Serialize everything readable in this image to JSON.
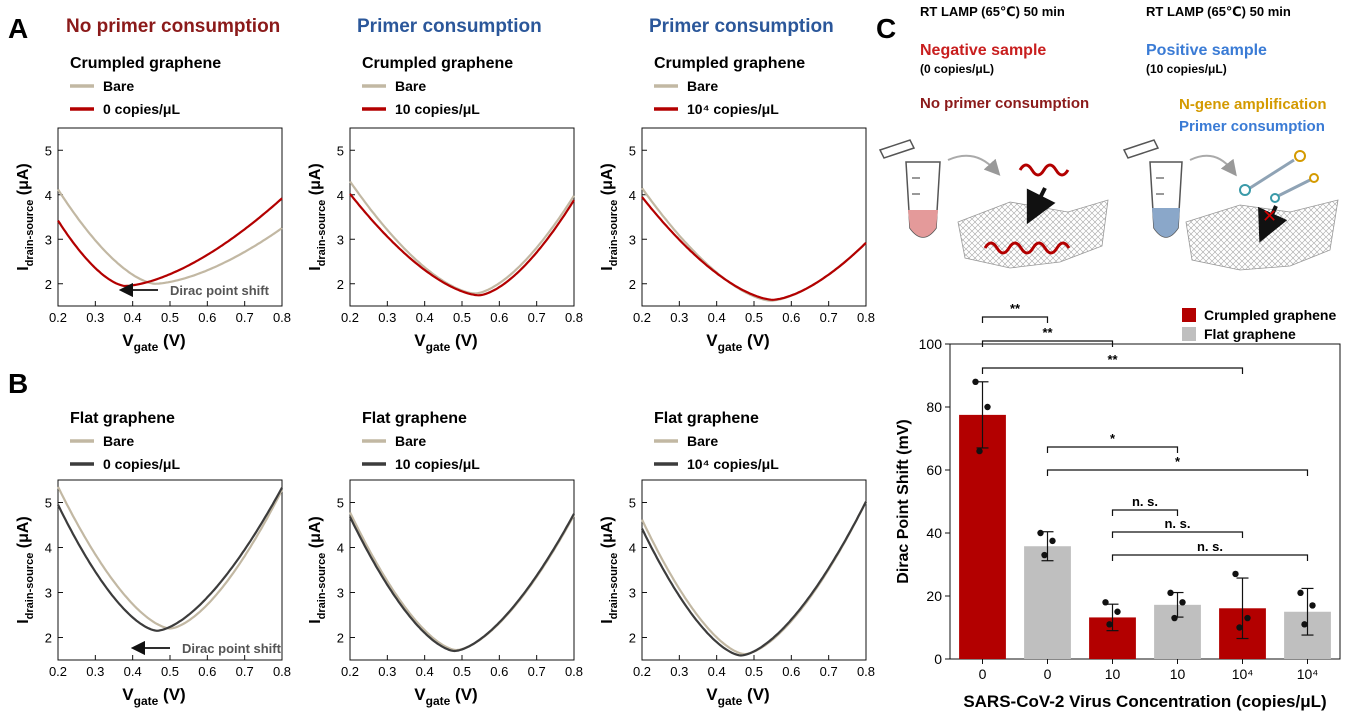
{
  "panels": {
    "A": {
      "label": "A"
    },
    "B": {
      "label": "B"
    },
    "C": {
      "label": "C"
    }
  },
  "column_headers": [
    {
      "text": "No primer consumption",
      "color": "#8b1a1a"
    },
    {
      "text": "Primer consumption",
      "color": "#2b579a"
    },
    {
      "text": "Primer consumption",
      "color": "#2b579a"
    }
  ],
  "colors": {
    "bare": "#c2b8a3",
    "crumpled": "#b30000",
    "flat": "#3c3c3c",
    "flat_bar": "#bfbfbf",
    "annotation": "#555555",
    "tube_negative": "#e49a9a",
    "tube_positive": "#8aa7c9",
    "ngene": "#d49a00",
    "primer": "#3a7bd5"
  },
  "iv_plots": [
    {
      "row": "A",
      "col": 0,
      "subtitle": "Crumpled graphene",
      "legend": [
        "Bare",
        "0 copies/μL"
      ],
      "sample_color": "crumpled",
      "bare": {
        "min_x": 0.46,
        "min_y": 2.0,
        "left_y": 4.12,
        "right_y": 3.25
      },
      "sample": {
        "min_x": 0.38,
        "min_y": 1.95,
        "left_y": 3.42,
        "right_y": 3.92
      },
      "annotation": "Dirac point shift",
      "xlabel": "V",
      "xlabel_sub": "gate",
      "xlabel_unit": "(V)",
      "ylabel": "I",
      "ylabel_sub": "drain-source",
      "ylabel_unit": "(μA)"
    },
    {
      "row": "A",
      "col": 1,
      "subtitle": "Crumpled graphene",
      "legend": [
        "Bare",
        "10 copies/μL"
      ],
      "sample_color": "crumpled",
      "bare": {
        "min_x": 0.535,
        "min_y": 1.78,
        "left_y": 4.3,
        "right_y": 3.98
      },
      "sample": {
        "min_x": 0.545,
        "min_y": 1.74,
        "left_y": 4.02,
        "right_y": 3.88
      },
      "annotation": "",
      "xlabel": "V",
      "xlabel_sub": "gate",
      "xlabel_unit": "(V)",
      "ylabel": "I",
      "ylabel_sub": "drain-source",
      "ylabel_unit": "(μA)"
    },
    {
      "row": "A",
      "col": 2,
      "subtitle": "Crumpled graphene",
      "legend": [
        "Bare",
        "10⁴ copies/μL"
      ],
      "sample_color": "crumpled",
      "bare": {
        "min_x": 0.545,
        "min_y": 1.62,
        "left_y": 4.15,
        "right_y": 2.92
      },
      "sample": {
        "min_x": 0.55,
        "min_y": 1.64,
        "left_y": 3.95,
        "right_y": 2.92
      },
      "annotation": "",
      "xlabel": "V",
      "xlabel_sub": "gate",
      "xlabel_unit": "(V)",
      "ylabel": "I",
      "ylabel_sub": "drain-source",
      "ylabel_unit": "(μA)"
    },
    {
      "row": "B",
      "col": 0,
      "subtitle": "Flat graphene",
      "legend": [
        "Bare",
        "0 copies/μL"
      ],
      "sample_color": "flat",
      "bare": {
        "min_x": 0.5,
        "min_y": 2.2,
        "left_y": 5.35,
        "right_y": 5.28
      },
      "sample": {
        "min_x": 0.465,
        "min_y": 2.15,
        "left_y": 4.95,
        "right_y": 5.33
      },
      "annotation": "Dirac point shift",
      "xlabel": "V",
      "xlabel_sub": "gate",
      "xlabel_unit": "(V)",
      "ylabel": "I",
      "ylabel_sub": "drain-source",
      "ylabel_unit": "(μA)"
    },
    {
      "row": "B",
      "col": 1,
      "subtitle": "Flat graphene",
      "legend": [
        "Bare",
        "10 copies/μL"
      ],
      "sample_color": "flat",
      "bare": {
        "min_x": 0.485,
        "min_y": 1.72,
        "left_y": 4.78,
        "right_y": 4.72
      },
      "sample": {
        "min_x": 0.48,
        "min_y": 1.7,
        "left_y": 4.68,
        "right_y": 4.75
      },
      "annotation": "",
      "xlabel": "V",
      "xlabel_sub": "gate",
      "xlabel_unit": "(V)",
      "ylabel": "I",
      "ylabel_sub": "drain-source",
      "ylabel_unit": "(μA)"
    },
    {
      "row": "B",
      "col": 2,
      "subtitle": "Flat graphene",
      "legend": [
        "Bare",
        "10⁴ copies/μL"
      ],
      "sample_color": "flat",
      "bare": {
        "min_x": 0.475,
        "min_y": 1.63,
        "left_y": 4.62,
        "right_y": 5.02
      },
      "sample": {
        "min_x": 0.465,
        "min_y": 1.6,
        "left_y": 4.42,
        "right_y": 5.02
      },
      "annotation": "",
      "xlabel": "V",
      "xlabel_sub": "gate",
      "xlabel_unit": "(V)",
      "ylabel": "I",
      "ylabel_sub": "drain-source",
      "ylabel_unit": "(μA)"
    }
  ],
  "iv_axes": {
    "xlim": [
      0.2,
      0.8
    ],
    "ylim": [
      1.5,
      5.5
    ],
    "xticks": [
      "0.2",
      "0.3",
      "0.4",
      "0.5",
      "0.6",
      "0.7",
      "0.8"
    ],
    "yticks": [
      "2",
      "3",
      "4",
      "5"
    ]
  },
  "schematic": {
    "left_condition": "RT LAMP (65℃) 50 min",
    "right_condition": "RT LAMP (65℃) 50 min",
    "negative_title": "Negative sample",
    "negative_sub": "(0 copies/μL)",
    "positive_title": "Positive sample",
    "positive_sub": "(10 copies/μL)",
    "left_result": "No primer consumption",
    "ngene": "N-gene amplification",
    "primer": "Primer consumption"
  },
  "chart_data": {
    "type": "bar",
    "categories": [
      "0",
      "0",
      "10",
      "10",
      "10⁴",
      "10⁴"
    ],
    "series_of_bar": [
      "Crumpled graphene",
      "Flat graphene",
      "Crumpled graphene",
      "Flat graphene",
      "Crumpled graphene",
      "Flat graphene"
    ],
    "values": [
      77.5,
      35.8,
      13.2,
      17.2,
      16.1,
      15.0
    ],
    "errors": [
      10.5,
      4.6,
      4.2,
      3.9,
      9.6,
      7.4
    ],
    "points": [
      [
        88,
        80,
        66
      ],
      [
        40,
        37.5,
        33
      ],
      [
        18,
        15,
        11
      ],
      [
        21,
        18,
        13
      ],
      [
        27,
        13,
        10
      ],
      [
        21,
        17,
        11
      ]
    ],
    "legend": [
      "Crumpled graphene",
      "Flat graphene"
    ],
    "xlabel": "SARS-CoV-2 Virus Concentration (copies/μL)",
    "ylabel": "Dirac Point Shift (mV)",
    "ylim": [
      0,
      100
    ],
    "yticks": [
      "0",
      "20",
      "40",
      "60",
      "80",
      "100"
    ],
    "significance": [
      {
        "from": 0,
        "to": 1,
        "label": "**"
      },
      {
        "from": 0,
        "to": 2,
        "label": "**"
      },
      {
        "from": 0,
        "to": 4,
        "label": "**"
      },
      {
        "from": 1,
        "to": 3,
        "label": "*"
      },
      {
        "from": 1,
        "to": 5,
        "label": "*"
      },
      {
        "from": 2,
        "to": 3,
        "label": "n. s."
      },
      {
        "from": 2,
        "to": 4,
        "label": "n. s."
      },
      {
        "from": 2,
        "to": 5,
        "label": "n. s."
      }
    ]
  }
}
